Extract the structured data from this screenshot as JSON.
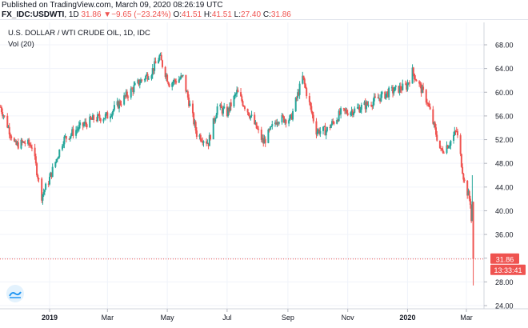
{
  "header": {
    "published": "Published on TradingView.com, March 09, 2020 08:26:19 UTC",
    "symbol": "FX_IDC:USDWTI",
    "interval": "1D",
    "last": "31.86",
    "change": "−9.65 (−23.24%)",
    "o_label": "O:",
    "o_value": "41.51",
    "h_label": "H:",
    "h_value": "41.51",
    "l_label": "L:",
    "l_value": "27.40",
    "c_label": "C:",
    "c_value": "31.86"
  },
  "chart_title": "U.S. DOLLAR / WTI CRUDE OIL, 1D, IDC",
  "volume_label": "Vol (20)",
  "logo_icon": "tradingview-logo-icon",
  "colors": {
    "up": "#26a69a",
    "down": "#ef5350",
    "grid": "#f0f3fa",
    "price_line": "#ef5350"
  },
  "price_label": "31.86",
  "countdown_label": "13:33:41",
  "chart_data": {
    "type": "candlestick",
    "title": "U.S. DOLLAR / WTI CRUDE OIL, 1D, IDC",
    "ylim": [
      23,
      70
    ],
    "y_ticks": [
      "68.00",
      "64.00",
      "60.00",
      "56.00",
      "52.00",
      "48.00",
      "44.00",
      "40.00",
      "36.00",
      "32.00",
      "28.00",
      "24.00"
    ],
    "x_ticks": [
      "2019",
      "Mar",
      "May",
      "Jul",
      "Sep",
      "Nov",
      "2020",
      "Mar"
    ],
    "grid": true,
    "current_price": 31.86,
    "points": [
      [
        "Nov 12",
        57.5
      ],
      [
        "Nov 27",
        51.0
      ],
      [
        "Dec 6",
        51.5
      ],
      [
        "Dec 14",
        51.0
      ],
      [
        "Dec 24",
        42.5
      ],
      [
        "Dec 31",
        45.0
      ],
      [
        "Jan 15",
        52.0
      ],
      [
        "Jan 31",
        54.0
      ],
      [
        "Feb 15",
        55.5
      ],
      [
        "Mar 1",
        56.0
      ],
      [
        "Mar 18",
        59.0
      ],
      [
        "Apr 1",
        61.5
      ],
      [
        "Apr 15",
        63.5
      ],
      [
        "Apr 23",
        66.0
      ],
      [
        "May 3",
        61.5
      ],
      [
        "May 17",
        62.5
      ],
      [
        "May 31",
        53.0
      ],
      [
        "Jun 12",
        51.5
      ],
      [
        "Jun 21",
        57.5
      ],
      [
        "Jul 1",
        56.5
      ],
      [
        "Jul 11",
        60.0
      ],
      [
        "Jul 25",
        56.0
      ],
      [
        "Aug 7",
        51.5
      ],
      [
        "Aug 21",
        55.5
      ],
      [
        "Sep 4",
        55.5
      ],
      [
        "Sep 16",
        62.5
      ],
      [
        "Sep 30",
        53.5
      ],
      [
        "Oct 10",
        53.5
      ],
      [
        "Oct 25",
        56.5
      ],
      [
        "Nov 8",
        57.0
      ],
      [
        "Nov 22",
        58.0
      ],
      [
        "Dec 13",
        60.0
      ],
      [
        "Dec 31",
        61.0
      ],
      [
        "Jan 6",
        63.5
      ],
      [
        "Jan 21",
        58.5
      ],
      [
        "Feb 4",
        50.0
      ],
      [
        "Feb 13",
        51.5
      ],
      [
        "Feb 20",
        53.5
      ],
      [
        "Feb 28",
        44.8
      ],
      [
        "Mar 6",
        41.5
      ],
      [
        "Mar 9",
        31.86
      ]
    ],
    "last_candle": {
      "date": "Mar 9",
      "open": 41.51,
      "high": 41.51,
      "low": 27.4,
      "close": 31.86
    }
  }
}
